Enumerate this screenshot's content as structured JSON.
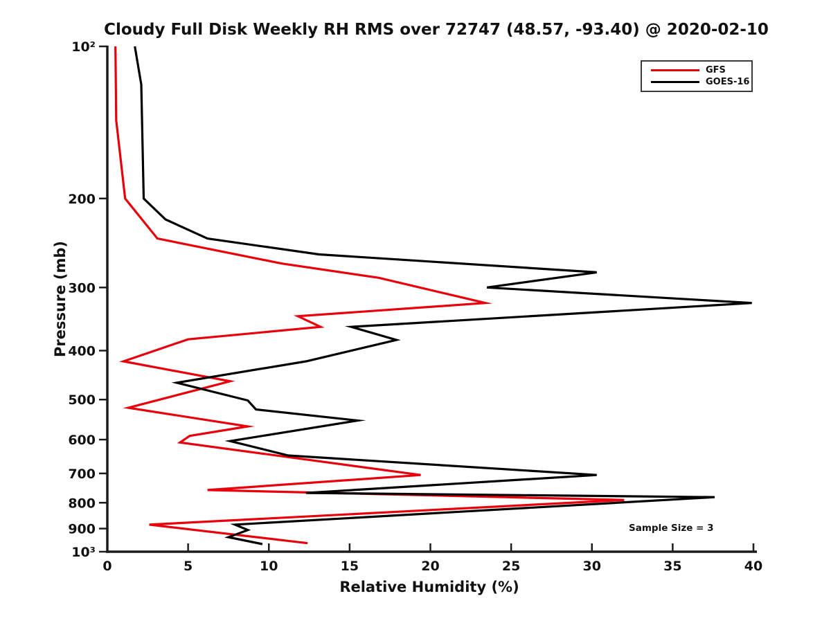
{
  "chart_data": {
    "type": "line",
    "title": "Cloudy Full Disk Weekly RH RMS over 72747 (48.57, -93.40) @ 2020-02-10",
    "xlabel": "Relative Humidity (%)",
    "ylabel": "Pressure (mb)",
    "xlim": [
      0,
      40
    ],
    "ylim": [
      100,
      1000
    ],
    "y_scale": "log10 pressure, inverted (100 mb at top, 1000 mb at bottom)",
    "grid": false,
    "legend_position": "top-right",
    "annotation": "Sample Size = 3",
    "xticks": [
      0,
      5,
      10,
      15,
      20,
      25,
      30,
      35,
      40
    ],
    "yticks": [
      {
        "value": 100,
        "label": "10²"
      },
      {
        "value": 200,
        "label": "200"
      },
      {
        "value": 300,
        "label": "300"
      },
      {
        "value": 400,
        "label": "400"
      },
      {
        "value": 500,
        "label": "500"
      },
      {
        "value": 600,
        "label": "600"
      },
      {
        "value": 700,
        "label": "700"
      },
      {
        "value": 800,
        "label": "800"
      },
      {
        "value": 900,
        "label": "900"
      },
      {
        "value": 1000,
        "label": "10³"
      }
    ],
    "series": [
      {
        "name": "GFS",
        "color": "#e8000b",
        "points_rh_pressure": [
          [
            0.5,
            100
          ],
          [
            0.55,
            140
          ],
          [
            1.1,
            200
          ],
          [
            3.1,
            240
          ],
          [
            10.8,
            269
          ],
          [
            16.8,
            287
          ],
          [
            23.4,
            322
          ],
          [
            11.8,
            342
          ],
          [
            13.2,
            359
          ],
          [
            5.0,
            380
          ],
          [
            1.0,
            420
          ],
          [
            7.6,
            460
          ],
          [
            1.3,
            519
          ],
          [
            8.7,
            565
          ],
          [
            5.1,
            590
          ],
          [
            4.5,
            608
          ],
          [
            19.4,
            705
          ],
          [
            6.2,
            755
          ],
          [
            32.0,
            790
          ],
          [
            2.6,
            884
          ],
          [
            12.4,
            962
          ]
        ]
      },
      {
        "name": "GOES-16",
        "color": "#000000",
        "points_rh_pressure": [
          [
            1.7,
            100
          ],
          [
            2.1,
            119
          ],
          [
            2.25,
            200
          ],
          [
            3.6,
            220
          ],
          [
            6.2,
            240
          ],
          [
            13.1,
            258
          ],
          [
            30.3,
            280
          ],
          [
            23.5,
            300
          ],
          [
            39.9,
            322
          ],
          [
            15.1,
            359
          ],
          [
            17.9,
            381
          ],
          [
            12.3,
            420
          ],
          [
            4.3,
            463
          ],
          [
            8.7,
            502
          ],
          [
            9.2,
            523
          ],
          [
            15.5,
            550
          ],
          [
            7.6,
            604
          ],
          [
            11.2,
            645
          ],
          [
            30.3,
            705
          ],
          [
            12.3,
            765
          ],
          [
            37.6,
            780
          ],
          [
            7.9,
            884
          ],
          [
            8.7,
            906
          ],
          [
            7.5,
            936
          ],
          [
            9.6,
            966
          ]
        ]
      }
    ]
  }
}
